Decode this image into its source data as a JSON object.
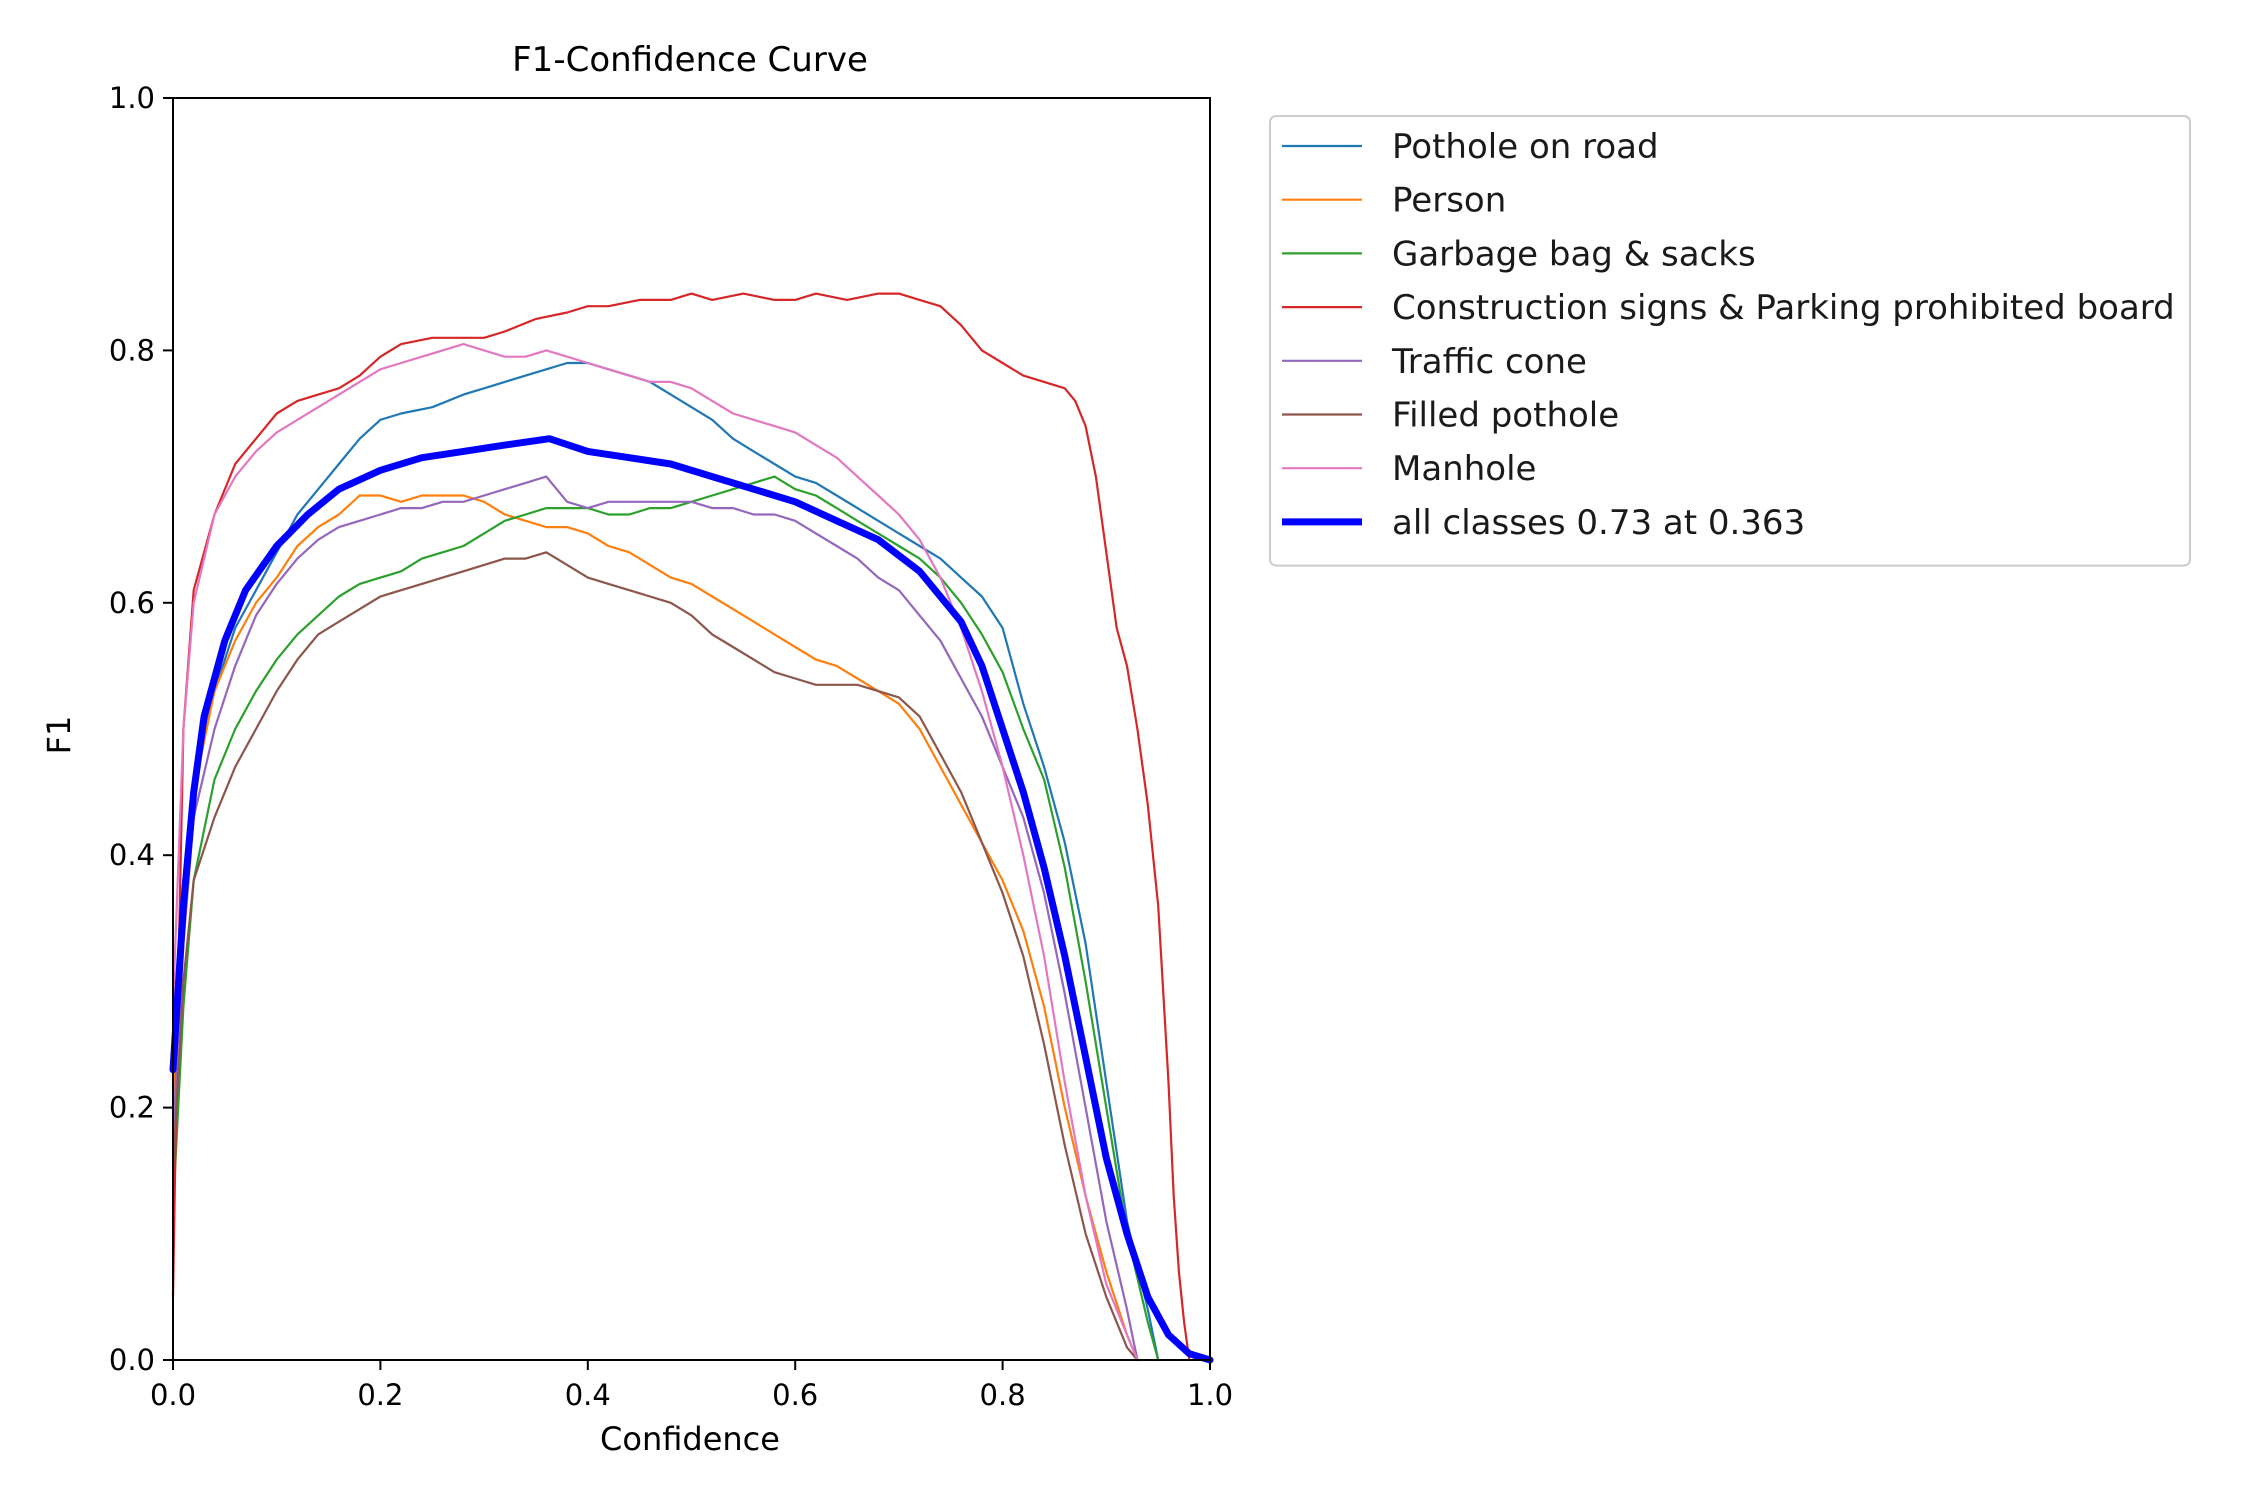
{
  "chart_data": {
    "type": "line",
    "title": "F1-Confidence Curve",
    "xlabel": "Confidence",
    "ylabel": "F1",
    "xlim": [
      0,
      1
    ],
    "ylim": [
      0,
      1
    ],
    "x_ticks": [
      "0.0",
      "0.2",
      "0.4",
      "0.6",
      "0.8",
      "1.0"
    ],
    "y_ticks": [
      "0.0",
      "0.2",
      "0.4",
      "0.6",
      "0.8",
      "1.0"
    ],
    "grid": false,
    "legend_position": "outside-right-top",
    "series": [
      {
        "name": "Pothole on road",
        "color": "#1f77b4",
        "width": 2.2,
        "x": [
          0.0,
          0.01,
          0.02,
          0.04,
          0.06,
          0.08,
          0.1,
          0.12,
          0.14,
          0.16,
          0.18,
          0.2,
          0.22,
          0.25,
          0.28,
          0.3,
          0.32,
          0.34,
          0.36,
          0.38,
          0.4,
          0.42,
          0.44,
          0.46,
          0.48,
          0.5,
          0.52,
          0.54,
          0.56,
          0.58,
          0.6,
          0.62,
          0.64,
          0.66,
          0.68,
          0.7,
          0.72,
          0.74,
          0.76,
          0.78,
          0.8,
          0.82,
          0.84,
          0.86,
          0.88,
          0.9,
          0.92,
          0.94,
          0.95
        ],
        "y": [
          0.24,
          0.38,
          0.46,
          0.53,
          0.58,
          0.61,
          0.64,
          0.67,
          0.69,
          0.71,
          0.73,
          0.745,
          0.75,
          0.755,
          0.765,
          0.77,
          0.775,
          0.78,
          0.785,
          0.79,
          0.79,
          0.785,
          0.78,
          0.775,
          0.765,
          0.755,
          0.745,
          0.73,
          0.72,
          0.71,
          0.7,
          0.695,
          0.685,
          0.675,
          0.665,
          0.655,
          0.645,
          0.635,
          0.62,
          0.605,
          0.58,
          0.52,
          0.47,
          0.41,
          0.33,
          0.22,
          0.11,
          0.04,
          0.0
        ]
      },
      {
        "name": "Person",
        "color": "#ff7f0e",
        "width": 2.2,
        "x": [
          0.0,
          0.01,
          0.02,
          0.04,
          0.06,
          0.08,
          0.1,
          0.12,
          0.14,
          0.16,
          0.18,
          0.2,
          0.22,
          0.24,
          0.26,
          0.28,
          0.3,
          0.32,
          0.34,
          0.36,
          0.38,
          0.4,
          0.42,
          0.44,
          0.46,
          0.48,
          0.5,
          0.52,
          0.54,
          0.56,
          0.58,
          0.6,
          0.62,
          0.64,
          0.66,
          0.68,
          0.7,
          0.72,
          0.74,
          0.76,
          0.78,
          0.8,
          0.82,
          0.84,
          0.86,
          0.88,
          0.9,
          0.92,
          0.93
        ],
        "y": [
          0.2,
          0.36,
          0.45,
          0.53,
          0.57,
          0.6,
          0.62,
          0.645,
          0.66,
          0.67,
          0.685,
          0.685,
          0.68,
          0.685,
          0.685,
          0.685,
          0.68,
          0.67,
          0.665,
          0.66,
          0.66,
          0.655,
          0.645,
          0.64,
          0.63,
          0.62,
          0.615,
          0.605,
          0.595,
          0.585,
          0.575,
          0.565,
          0.555,
          0.55,
          0.54,
          0.53,
          0.52,
          0.5,
          0.47,
          0.44,
          0.41,
          0.38,
          0.34,
          0.28,
          0.2,
          0.13,
          0.07,
          0.02,
          0.0
        ]
      },
      {
        "name": "Garbage bag & sacks",
        "color": "#2ca02c",
        "width": 2.2,
        "x": [
          0.0,
          0.01,
          0.02,
          0.04,
          0.06,
          0.08,
          0.1,
          0.12,
          0.14,
          0.16,
          0.18,
          0.2,
          0.22,
          0.24,
          0.26,
          0.28,
          0.3,
          0.32,
          0.34,
          0.36,
          0.38,
          0.4,
          0.42,
          0.44,
          0.46,
          0.48,
          0.5,
          0.52,
          0.54,
          0.56,
          0.58,
          0.6,
          0.62,
          0.64,
          0.66,
          0.68,
          0.7,
          0.72,
          0.74,
          0.76,
          0.78,
          0.8,
          0.82,
          0.84,
          0.86,
          0.88,
          0.9,
          0.92,
          0.94,
          0.95
        ],
        "y": [
          0.12,
          0.28,
          0.38,
          0.46,
          0.5,
          0.53,
          0.555,
          0.575,
          0.59,
          0.605,
          0.615,
          0.62,
          0.625,
          0.635,
          0.64,
          0.645,
          0.655,
          0.665,
          0.67,
          0.675,
          0.675,
          0.675,
          0.67,
          0.67,
          0.675,
          0.675,
          0.68,
          0.685,
          0.69,
          0.695,
          0.7,
          0.69,
          0.685,
          0.675,
          0.665,
          0.655,
          0.645,
          0.635,
          0.62,
          0.6,
          0.575,
          0.545,
          0.5,
          0.46,
          0.39,
          0.3,
          0.2,
          0.1,
          0.03,
          0.0
        ]
      },
      {
        "name": "Construction signs & Parking prohibited board",
        "color": "#d62728",
        "width": 2.2,
        "x": [
          0.0,
          0.005,
          0.01,
          0.02,
          0.04,
          0.06,
          0.08,
          0.1,
          0.12,
          0.14,
          0.16,
          0.18,
          0.2,
          0.22,
          0.25,
          0.28,
          0.3,
          0.32,
          0.35,
          0.38,
          0.4,
          0.42,
          0.45,
          0.48,
          0.5,
          0.52,
          0.55,
          0.58,
          0.6,
          0.62,
          0.65,
          0.68,
          0.7,
          0.72,
          0.74,
          0.76,
          0.78,
          0.8,
          0.82,
          0.84,
          0.86,
          0.87,
          0.88,
          0.89,
          0.9,
          0.91,
          0.92,
          0.93,
          0.94,
          0.95,
          0.96,
          0.965,
          0.97,
          0.975,
          0.98
        ],
        "y": [
          0.05,
          0.3,
          0.5,
          0.61,
          0.67,
          0.71,
          0.73,
          0.75,
          0.76,
          0.765,
          0.77,
          0.78,
          0.795,
          0.805,
          0.81,
          0.81,
          0.81,
          0.815,
          0.825,
          0.83,
          0.835,
          0.835,
          0.84,
          0.84,
          0.845,
          0.84,
          0.845,
          0.84,
          0.84,
          0.845,
          0.84,
          0.845,
          0.845,
          0.84,
          0.835,
          0.82,
          0.8,
          0.79,
          0.78,
          0.775,
          0.77,
          0.76,
          0.74,
          0.7,
          0.64,
          0.58,
          0.55,
          0.5,
          0.44,
          0.36,
          0.22,
          0.13,
          0.07,
          0.03,
          0.0
        ]
      },
      {
        "name": "Traffic cone",
        "color": "#9467bd",
        "width": 2.2,
        "x": [
          0.0,
          0.01,
          0.02,
          0.04,
          0.06,
          0.08,
          0.1,
          0.12,
          0.14,
          0.16,
          0.18,
          0.2,
          0.22,
          0.24,
          0.26,
          0.28,
          0.3,
          0.32,
          0.34,
          0.36,
          0.38,
          0.4,
          0.42,
          0.44,
          0.46,
          0.48,
          0.5,
          0.52,
          0.54,
          0.56,
          0.58,
          0.6,
          0.62,
          0.64,
          0.66,
          0.68,
          0.7,
          0.72,
          0.74,
          0.76,
          0.78,
          0.8,
          0.82,
          0.84,
          0.86,
          0.88,
          0.9,
          0.92,
          0.93
        ],
        "y": [
          0.18,
          0.33,
          0.43,
          0.5,
          0.55,
          0.59,
          0.615,
          0.635,
          0.65,
          0.66,
          0.665,
          0.67,
          0.675,
          0.675,
          0.68,
          0.68,
          0.685,
          0.69,
          0.695,
          0.7,
          0.68,
          0.675,
          0.68,
          0.68,
          0.68,
          0.68,
          0.68,
          0.675,
          0.675,
          0.67,
          0.67,
          0.665,
          0.655,
          0.645,
          0.635,
          0.62,
          0.61,
          0.59,
          0.57,
          0.54,
          0.51,
          0.47,
          0.43,
          0.37,
          0.29,
          0.2,
          0.11,
          0.04,
          0.0
        ]
      },
      {
        "name": "Filled pothole",
        "color": "#8c564b",
        "width": 2.2,
        "x": [
          0.0,
          0.01,
          0.02,
          0.04,
          0.06,
          0.08,
          0.1,
          0.12,
          0.14,
          0.16,
          0.18,
          0.2,
          0.22,
          0.24,
          0.26,
          0.28,
          0.3,
          0.32,
          0.34,
          0.36,
          0.38,
          0.4,
          0.42,
          0.44,
          0.46,
          0.48,
          0.5,
          0.52,
          0.54,
          0.56,
          0.58,
          0.6,
          0.62,
          0.64,
          0.66,
          0.68,
          0.7,
          0.72,
          0.74,
          0.76,
          0.78,
          0.8,
          0.82,
          0.84,
          0.86,
          0.88,
          0.9,
          0.92,
          0.93
        ],
        "y": [
          0.15,
          0.3,
          0.38,
          0.43,
          0.47,
          0.5,
          0.53,
          0.555,
          0.575,
          0.585,
          0.595,
          0.605,
          0.61,
          0.615,
          0.62,
          0.625,
          0.63,
          0.635,
          0.635,
          0.64,
          0.63,
          0.62,
          0.615,
          0.61,
          0.605,
          0.6,
          0.59,
          0.575,
          0.565,
          0.555,
          0.545,
          0.54,
          0.535,
          0.535,
          0.535,
          0.53,
          0.525,
          0.51,
          0.48,
          0.45,
          0.41,
          0.37,
          0.32,
          0.25,
          0.17,
          0.1,
          0.05,
          0.01,
          0.0
        ]
      },
      {
        "name": "Manhole",
        "color": "#e377c2",
        "width": 2.2,
        "x": [
          0.0,
          0.01,
          0.02,
          0.04,
          0.06,
          0.08,
          0.1,
          0.12,
          0.14,
          0.16,
          0.18,
          0.2,
          0.22,
          0.24,
          0.26,
          0.28,
          0.3,
          0.32,
          0.34,
          0.36,
          0.38,
          0.4,
          0.42,
          0.44,
          0.46,
          0.48,
          0.5,
          0.52,
          0.54,
          0.56,
          0.58,
          0.6,
          0.62,
          0.64,
          0.66,
          0.68,
          0.7,
          0.72,
          0.74,
          0.76,
          0.78,
          0.8,
          0.82,
          0.84,
          0.86,
          0.88,
          0.9,
          0.92,
          0.93
        ],
        "y": [
          0.28,
          0.5,
          0.6,
          0.67,
          0.7,
          0.72,
          0.735,
          0.745,
          0.755,
          0.765,
          0.775,
          0.785,
          0.79,
          0.795,
          0.8,
          0.805,
          0.8,
          0.795,
          0.795,
          0.8,
          0.795,
          0.79,
          0.785,
          0.78,
          0.775,
          0.775,
          0.77,
          0.76,
          0.75,
          0.745,
          0.74,
          0.735,
          0.725,
          0.715,
          0.7,
          0.685,
          0.67,
          0.65,
          0.62,
          0.58,
          0.53,
          0.47,
          0.4,
          0.32,
          0.22,
          0.13,
          0.06,
          0.02,
          0.0
        ]
      },
      {
        "name": "all classes 0.73 at 0.363",
        "color": "#0000ff",
        "width": 7,
        "x": [
          0.0,
          0.01,
          0.02,
          0.03,
          0.05,
          0.07,
          0.1,
          0.13,
          0.16,
          0.2,
          0.24,
          0.28,
          0.32,
          0.363,
          0.4,
          0.44,
          0.48,
          0.52,
          0.56,
          0.6,
          0.64,
          0.68,
          0.72,
          0.76,
          0.78,
          0.8,
          0.82,
          0.84,
          0.86,
          0.88,
          0.9,
          0.92,
          0.94,
          0.96,
          0.98,
          1.0
        ],
        "y": [
          0.23,
          0.36,
          0.45,
          0.51,
          0.57,
          0.61,
          0.645,
          0.67,
          0.69,
          0.705,
          0.715,
          0.72,
          0.725,
          0.73,
          0.72,
          0.715,
          0.71,
          0.7,
          0.69,
          0.68,
          0.665,
          0.65,
          0.625,
          0.585,
          0.55,
          0.5,
          0.45,
          0.39,
          0.32,
          0.24,
          0.16,
          0.1,
          0.05,
          0.02,
          0.005,
          0.0
        ]
      }
    ]
  }
}
